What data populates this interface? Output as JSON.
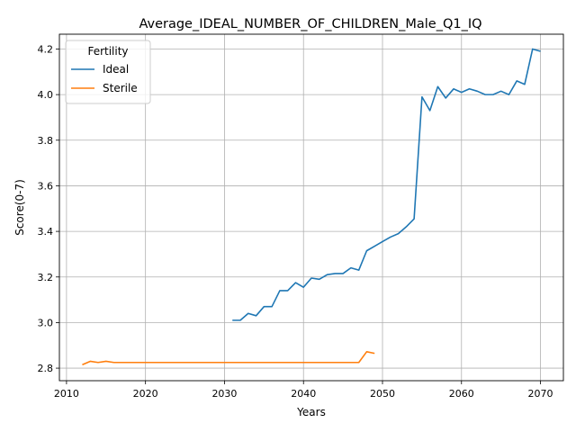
{
  "chart_data": {
    "type": "line",
    "title": "Average_IDEAL_NUMBER_OF_CHILDREN_Male_Q1_IQ",
    "xlabel": "Years",
    "ylabel": "Score(0-7)",
    "xlim": [
      2009.1,
      2072.9
    ],
    "ylim": [
      2.745,
      4.265
    ],
    "xticks": [
      2010,
      2020,
      2030,
      2040,
      2050,
      2060,
      2070
    ],
    "xtick_labels": [
      "2010",
      "2020",
      "2030",
      "2040",
      "2050",
      "2060",
      "2070"
    ],
    "yticks": [
      2.8,
      3.0,
      3.2,
      3.4,
      3.6,
      3.8,
      4.0,
      4.2
    ],
    "ytick_labels": [
      "2.8",
      "3.0",
      "3.2",
      "3.4",
      "3.6",
      "3.8",
      "4.0",
      "4.2"
    ],
    "grid": true,
    "legend": {
      "title": "Fertility",
      "position": "top-left"
    },
    "series": [
      {
        "name": "Ideal",
        "color": "#1f77b4",
        "x": [
          2031,
          2032,
          2033,
          2034,
          2035,
          2036,
          2037,
          2038,
          2039,
          2040,
          2041,
          2042,
          2043,
          2044,
          2045,
          2046,
          2047,
          2048,
          2049,
          2050,
          2051,
          2052,
          2053,
          2054,
          2055,
          2056,
          2057,
          2058,
          2059,
          2060,
          2061,
          2062,
          2063,
          2064,
          2065,
          2066,
          2067,
          2068,
          2069,
          2070
        ],
        "y": [
          3.01,
          3.01,
          3.04,
          3.03,
          3.07,
          3.07,
          3.14,
          3.14,
          3.175,
          3.155,
          3.195,
          3.19,
          3.21,
          3.215,
          3.215,
          3.24,
          3.23,
          3.315,
          3.335,
          3.355,
          3.375,
          3.39,
          3.42,
          3.455,
          3.99,
          3.93,
          4.035,
          3.985,
          4.025,
          4.01,
          4.025,
          4.015,
          4.0,
          4.0,
          4.015,
          4.0,
          4.06,
          4.045,
          4.2,
          4.19
        ]
      },
      {
        "name": "Sterile",
        "color": "#ff7f0e",
        "x": [
          2012,
          2013,
          2014,
          2015,
          2016,
          2017,
          2018,
          2019,
          2020,
          2021,
          2022,
          2023,
          2024,
          2025,
          2026,
          2027,
          2028,
          2029,
          2030,
          2031,
          2032,
          2033,
          2034,
          2035,
          2036,
          2037,
          2038,
          2039,
          2040,
          2041,
          2042,
          2043,
          2044,
          2045,
          2046,
          2047,
          2048,
          2049
        ],
        "y": [
          2.815,
          2.83,
          2.825,
          2.83,
          2.825,
          2.825,
          2.825,
          2.825,
          2.825,
          2.825,
          2.825,
          2.825,
          2.825,
          2.825,
          2.825,
          2.825,
          2.825,
          2.825,
          2.825,
          2.825,
          2.825,
          2.825,
          2.825,
          2.825,
          2.825,
          2.825,
          2.825,
          2.825,
          2.825,
          2.825,
          2.825,
          2.825,
          2.825,
          2.825,
          2.825,
          2.825,
          2.872,
          2.865
        ]
      }
    ]
  }
}
